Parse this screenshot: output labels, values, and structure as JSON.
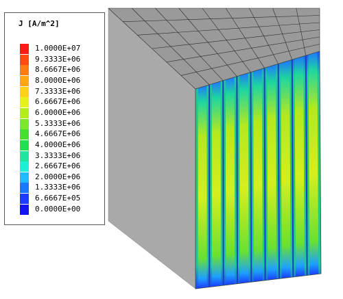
{
  "legend": {
    "title": "J [A/m^2]",
    "labels": [
      "1.0000E+07",
      "9.3333E+06",
      "8.6667E+06",
      "8.0000E+06",
      "7.3333E+06",
      "6.6667E+06",
      "6.0000E+06",
      "5.3333E+06",
      "4.6667E+06",
      "4.0000E+06",
      "3.3333E+06",
      "2.6667E+06",
      "2.0000E+06",
      "1.3333E+06",
      "6.6667E+05",
      "0.0000E+00"
    ],
    "colors": [
      "#ff1a1a",
      "#ff4a12",
      "#ff7d10",
      "#ffa612",
      "#ffd21a",
      "#e6f21a",
      "#b4ee1a",
      "#7de82a",
      "#45e02e",
      "#1ee052",
      "#20e6a0",
      "#1ef0d6",
      "#1ebcff",
      "#1a78ff",
      "#1e3cff",
      "#1414f0"
    ]
  },
  "model": {
    "face_colors": {
      "top": "#9a9a9a",
      "left": "#a9a9a9",
      "grid": "#2a2a2a"
    },
    "plot_colors": {
      "background": "#1ec86a",
      "stripe": "#c8e81e",
      "edge": "#1a3cff",
      "divider": "#5a7a7a"
    }
  }
}
